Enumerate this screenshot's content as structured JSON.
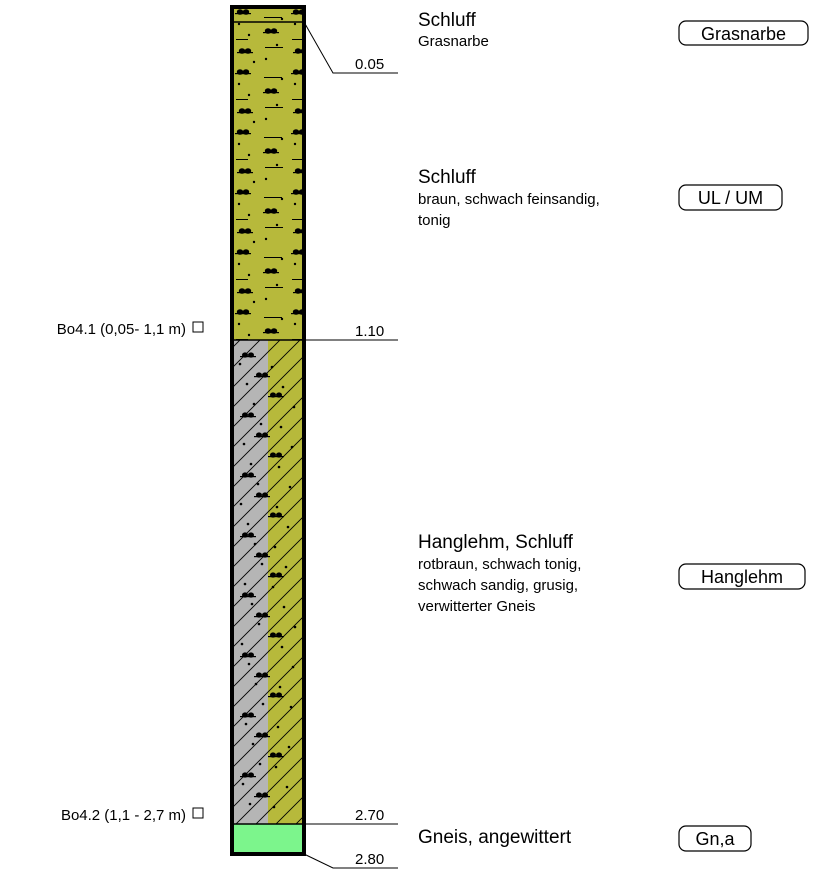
{
  "colors": {
    "schluff": "#b7b93b",
    "hanglehm_gray": "#b5b5b5",
    "gneis": "#7cf58c",
    "outline": "#000000"
  },
  "layers": [
    {
      "id": "grasnarbe",
      "title": "Schluff",
      "description": [
        "Grasnarbe"
      ],
      "code": "Grasnarbe",
      "depth_bottom_label": "0.05",
      "pattern": "schluff"
    },
    {
      "id": "schluff",
      "title": "Schluff",
      "description": [
        "braun, schwach feinsandig,",
        "tonig"
      ],
      "code": "UL / UM",
      "depth_bottom_label": "1.10",
      "pattern": "schluff"
    },
    {
      "id": "hanglehm",
      "title": "Hanglehm, Schluff",
      "description": [
        "rotbraun, schwach tonig,",
        "schwach sandig, grusig,",
        "verwitterter Gneis"
      ],
      "code": "Hanglehm",
      "depth_bottom_label": "2.70",
      "pattern": "hanglehm"
    },
    {
      "id": "gneis",
      "title": "Gneis, angewittert",
      "description": [],
      "code": "Gn,a",
      "depth_bottom_label": "2.80",
      "pattern": "gneis"
    }
  ],
  "samples": [
    {
      "label": "Bo4.1 (0,05- 1,1 m)"
    },
    {
      "label": "Bo4.2 (1,1 - 2,7 m)"
    }
  ]
}
